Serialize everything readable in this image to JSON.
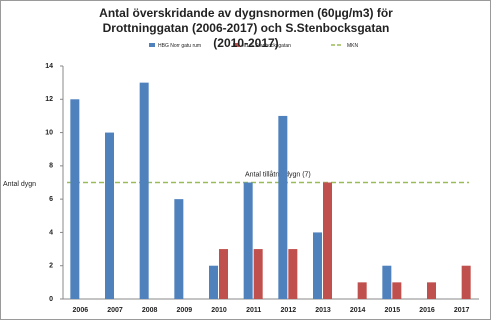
{
  "chart_data": {
    "type": "bar",
    "title": "Antal överskridande av dygnsnormen (60µg/m3) för Drottninggatan (2006-2017) och S.Stenbocksgatan (2010-2017)",
    "ylabel": "Antal dygn",
    "annotation": "Antal tillåtna dygn (7)",
    "categories": [
      "2006",
      "2007",
      "2008",
      "2009",
      "2010",
      "2011",
      "2012",
      "2013",
      "2014",
      "2015",
      "2016",
      "2017"
    ],
    "series": [
      {
        "name": "HBG Norr gatu rum",
        "color": "#4f81bd",
        "values": [
          12,
          10,
          13,
          6,
          2,
          7,
          11,
          4,
          0,
          2,
          0,
          0
        ]
      },
      {
        "name": "M1 S.Stenbocksgatan",
        "color": "#c0504d",
        "values": [
          null,
          null,
          null,
          null,
          3,
          3,
          3,
          7,
          1,
          1,
          1,
          2
        ]
      }
    ],
    "mkn": {
      "name": "MKN",
      "value": 7,
      "color": "#9bbb59"
    },
    "ylim": [
      0,
      14
    ],
    "yticks": [
      0,
      2,
      4,
      6,
      8,
      10,
      12,
      14
    ],
    "grid": false
  }
}
